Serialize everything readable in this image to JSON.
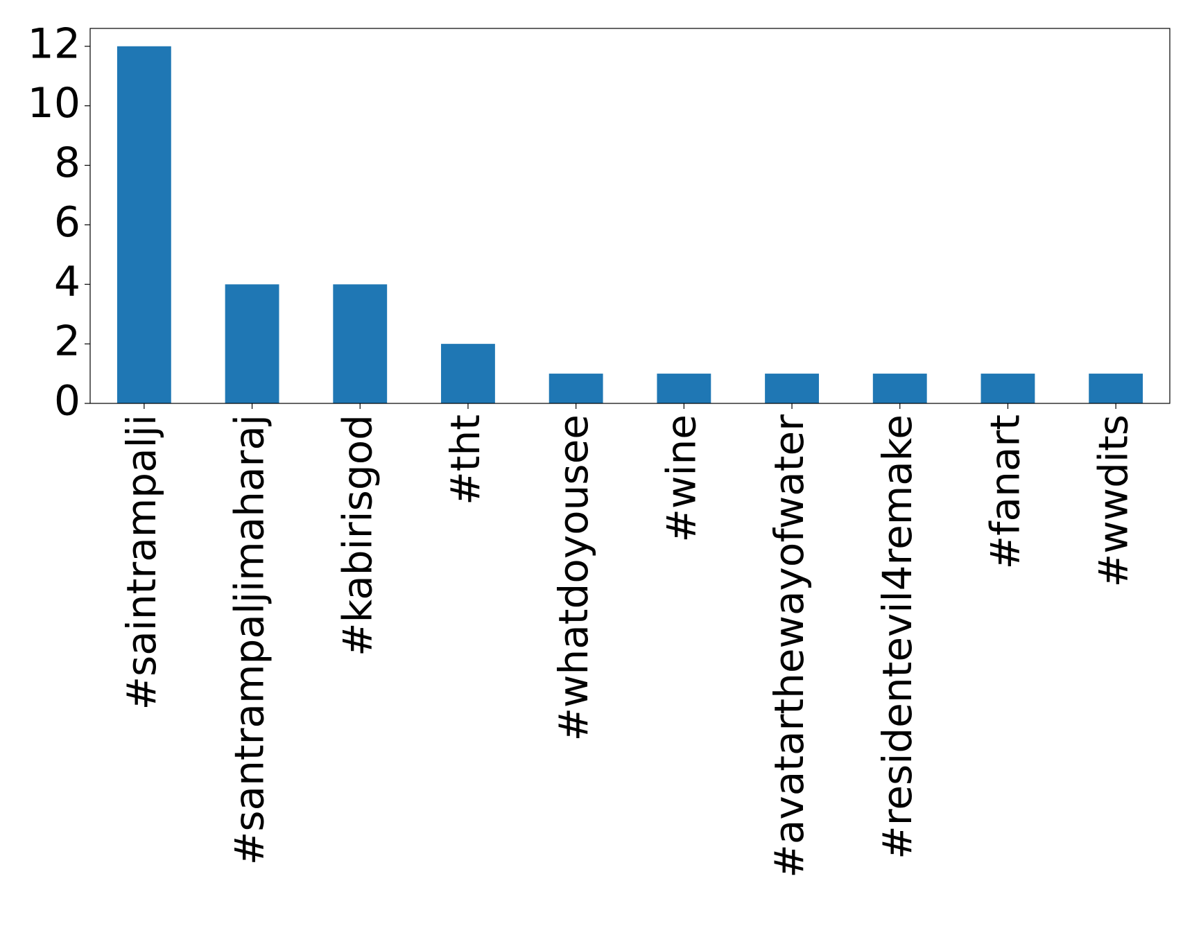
{
  "chart_data": {
    "type": "bar",
    "categories": [
      "#saintrampalji",
      "#santrampaljimaharaj",
      "#kabirisgod",
      "#tht",
      "#whatdoyousee",
      "#wine",
      "#avatarthewayofwater",
      "#residentevil4remake",
      "#fanart",
      "#wwdits"
    ],
    "values": [
      12,
      4,
      4,
      2,
      1,
      1,
      1,
      1,
      1,
      1
    ],
    "color": "#1f77b4",
    "ylim": [
      0,
      12.6
    ],
    "yticks": [
      0,
      2,
      4,
      6,
      8,
      10,
      12
    ],
    "grid": false
  }
}
